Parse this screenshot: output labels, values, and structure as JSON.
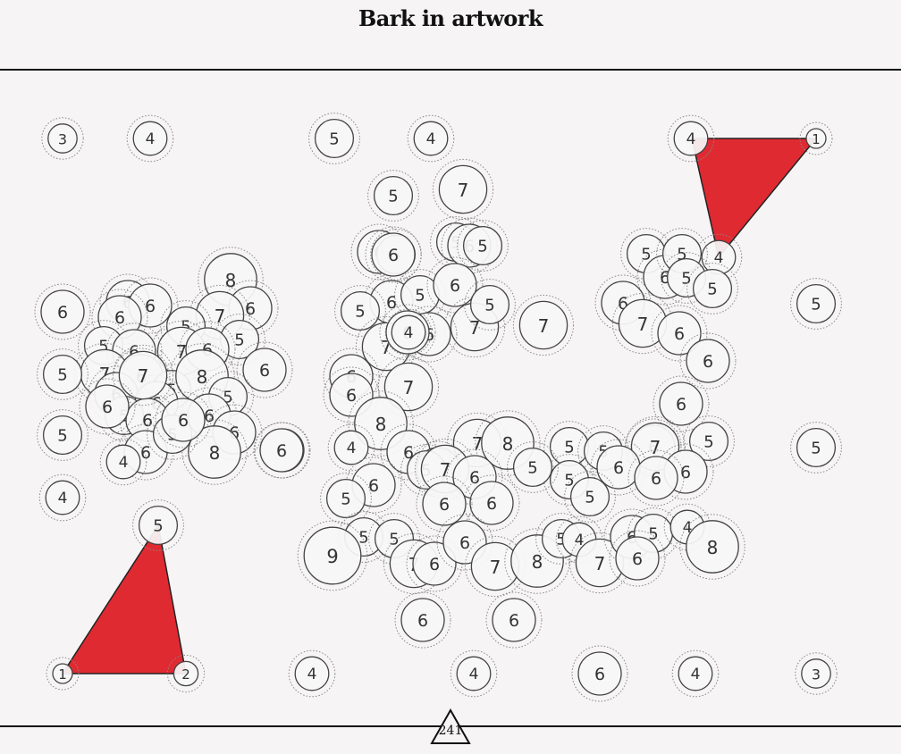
{
  "title": "Bark in artwork",
  "page_number": "241",
  "colors": {
    "background": "#f6f4f5",
    "triangle_fill": "#e02a32",
    "line": "#111111"
  },
  "nodes": [
    {
      "id": "n1",
      "label": "3"
    },
    {
      "id": "n2",
      "label": "4"
    },
    {
      "id": "n3",
      "label": "5"
    },
    {
      "id": "n4",
      "label": "4"
    },
    {
      "id": "n5",
      "label": "4"
    },
    {
      "id": "n6",
      "label": "1"
    },
    {
      "id": "n7",
      "label": "5"
    },
    {
      "id": "n8",
      "label": "7"
    },
    {
      "id": "n9",
      "label": "6"
    },
    {
      "id": "n10",
      "label": "5"
    },
    {
      "id": "n11",
      "label": "5"
    },
    {
      "id": "n12",
      "label": "6"
    },
    {
      "id": "n13",
      "label": "5"
    },
    {
      "id": "n14",
      "label": "4"
    },
    {
      "id": "n15",
      "label": "6"
    },
    {
      "id": "n16",
      "label": "5"
    },
    {
      "id": "n17",
      "label": "5"
    },
    {
      "id": "n18",
      "label": "8"
    },
    {
      "id": "n19",
      "label": "6"
    },
    {
      "id": "n20",
      "label": "6"
    },
    {
      "id": "n21",
      "label": "6"
    },
    {
      "id": "n22",
      "label": "7"
    },
    {
      "id": "n23",
      "label": "6"
    },
    {
      "id": "n24",
      "label": "6"
    },
    {
      "id": "n25",
      "label": "5"
    },
    {
      "id": "n26",
      "label": "5"
    },
    {
      "id": "n27",
      "label": "5"
    },
    {
      "id": "n28",
      "label": "7"
    },
    {
      "id": "n29",
      "label": "6"
    },
    {
      "id": "n30",
      "label": "6"
    },
    {
      "id": "n31",
      "label": "7"
    },
    {
      "id": "n32",
      "label": "6"
    },
    {
      "id": "n33",
      "label": "5"
    },
    {
      "id": "n34",
      "label": "6"
    },
    {
      "id": "n35",
      "label": "8"
    },
    {
      "id": "n36",
      "label": "6"
    },
    {
      "id": "n37",
      "label": "5"
    },
    {
      "id": "n38",
      "label": "6"
    },
    {
      "id": "n39",
      "label": "5"
    },
    {
      "id": "n40",
      "label": "6"
    },
    {
      "id": "n41",
      "label": "6"
    },
    {
      "id": "n42",
      "label": "6"
    },
    {
      "id": "n43",
      "label": "5"
    },
    {
      "id": "n44",
      "label": "6"
    },
    {
      "id": "n45",
      "label": "8"
    },
    {
      "id": "n46",
      "label": "6"
    },
    {
      "id": "n47",
      "label": "5"
    },
    {
      "id": "n48",
      "label": "4"
    },
    {
      "id": "n49",
      "label": "6"
    },
    {
      "id": "n50",
      "label": "5"
    },
    {
      "id": "n51",
      "label": "5"
    },
    {
      "id": "n52",
      "label": "6"
    },
    {
      "id": "n53",
      "label": "7"
    },
    {
      "id": "n54",
      "label": "6"
    },
    {
      "id": "n55",
      "label": "7"
    },
    {
      "id": "n56",
      "label": "6"
    },
    {
      "id": "n57",
      "label": "5"
    },
    {
      "id": "n58",
      "label": "6"
    },
    {
      "id": "n59",
      "label": "4"
    },
    {
      "id": "n60",
      "label": "6"
    },
    {
      "id": "n61",
      "label": "7"
    },
    {
      "id": "n62",
      "label": "5"
    },
    {
      "id": "n63",
      "label": "7"
    },
    {
      "id": "n64",
      "label": "6"
    },
    {
      "id": "n65",
      "label": "7"
    },
    {
      "id": "n66",
      "label": "8"
    },
    {
      "id": "n67",
      "label": "4"
    },
    {
      "id": "n68",
      "label": "5"
    },
    {
      "id": "n69",
      "label": "6"
    },
    {
      "id": "n70",
      "label": "6"
    },
    {
      "id": "n71",
      "label": "6"
    },
    {
      "id": "n72",
      "label": "6"
    },
    {
      "id": "n73",
      "label": "6"
    },
    {
      "id": "n74",
      "label": "7"
    },
    {
      "id": "n75",
      "label": "8"
    },
    {
      "id": "n76",
      "label": "5"
    },
    {
      "id": "n77",
      "label": "5"
    },
    {
      "id": "n78",
      "label": "6"
    },
    {
      "id": "n79",
      "label": "5"
    },
    {
      "id": "n80",
      "label": "7"
    },
    {
      "id": "n81",
      "label": "6"
    },
    {
      "id": "n82",
      "label": "6"
    },
    {
      "id": "n83",
      "label": "7"
    },
    {
      "id": "n84",
      "label": "6"
    },
    {
      "id": "n85",
      "label": "6"
    },
    {
      "id": "n86",
      "label": "5"
    },
    {
      "id": "n87",
      "label": "5"
    },
    {
      "id": "n88",
      "label": "5"
    },
    {
      "id": "n89",
      "label": "6"
    },
    {
      "id": "n90",
      "label": "6"
    },
    {
      "id": "n91",
      "label": "5"
    },
    {
      "id": "n92",
      "label": "6"
    },
    {
      "id": "n93",
      "label": "5"
    },
    {
      "id": "n94",
      "label": "5"
    },
    {
      "id": "n95",
      "label": "9"
    },
    {
      "id": "n96",
      "label": "7"
    },
    {
      "id": "n97",
      "label": "6"
    },
    {
      "id": "n98",
      "label": "6"
    },
    {
      "id": "n99",
      "label": "7"
    },
    {
      "id": "n100",
      "label": "8"
    },
    {
      "id": "n101",
      "label": "5"
    },
    {
      "id": "n102",
      "label": "4"
    },
    {
      "id": "n103",
      "label": "7"
    },
    {
      "id": "n104",
      "label": "6"
    },
    {
      "id": "n105",
      "label": "5"
    },
    {
      "id": "n106",
      "label": "6"
    },
    {
      "id": "n107",
      "label": "4"
    },
    {
      "id": "n108",
      "label": "8"
    },
    {
      "id": "n109",
      "label": "6"
    },
    {
      "id": "n110",
      "label": "6"
    },
    {
      "id": "n111",
      "label": "1"
    },
    {
      "id": "n112",
      "label": "2"
    },
    {
      "id": "n113",
      "label": "4"
    },
    {
      "id": "n114",
      "label": "4"
    },
    {
      "id": "n115",
      "label": "6"
    },
    {
      "id": "n116",
      "label": "4"
    },
    {
      "id": "n117",
      "label": "3"
    },
    {
      "id": "n118",
      "label": "6"
    },
    {
      "id": "n119",
      "label": "5"
    },
    {
      "id": "n120",
      "label": "5"
    },
    {
      "id": "n121",
      "label": "5"
    },
    {
      "id": "n122",
      "label": "4"
    },
    {
      "id": "n123",
      "label": "5"
    },
    {
      "id": "n124",
      "label": "5"
    },
    {
      "id": "n125",
      "label": "7"
    },
    {
      "id": "n126",
      "label": "6"
    },
    {
      "id": "n127",
      "label": "6"
    },
    {
      "id": "n128",
      "label": "6"
    }
  ]
}
